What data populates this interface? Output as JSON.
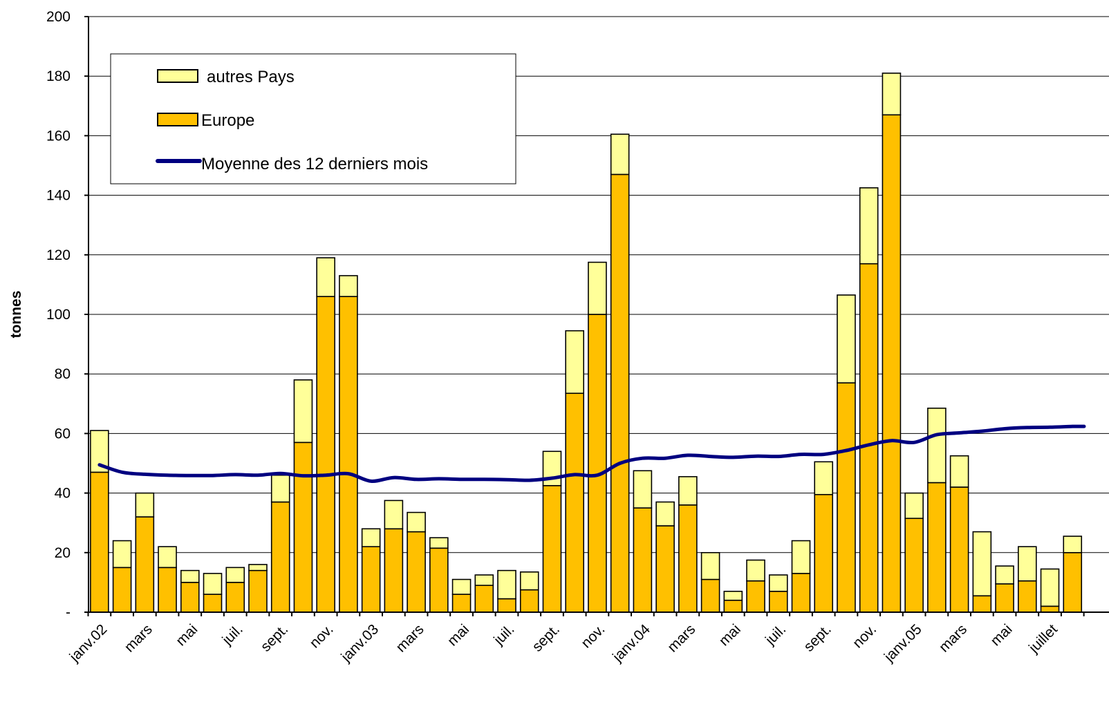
{
  "chart_data": {
    "type": "bar",
    "stacked": true,
    "ylabel": "tonnes",
    "xlabel": "",
    "ylim": [
      0,
      200
    ],
    "y_ticks": [
      {
        "value": 0,
        "label": "-"
      },
      {
        "value": 20,
        "label": "20"
      },
      {
        "value": 40,
        "label": "40"
      },
      {
        "value": 60,
        "label": "60"
      },
      {
        "value": 80,
        "label": "80"
      },
      {
        "value": 100,
        "label": "100"
      },
      {
        "value": 120,
        "label": "120"
      },
      {
        "value": 140,
        "label": "140"
      },
      {
        "value": 160,
        "label": "160"
      },
      {
        "value": 180,
        "label": "180"
      },
      {
        "value": 200,
        "label": "200"
      }
    ],
    "grid": true,
    "legend_position": "top-left",
    "x_tick_labels": [
      {
        "index": 0,
        "label": "janv.02"
      },
      {
        "index": 2,
        "label": "mars"
      },
      {
        "index": 4,
        "label": "mai"
      },
      {
        "index": 6,
        "label": "juil."
      },
      {
        "index": 8,
        "label": "sept."
      },
      {
        "index": 10,
        "label": "nov."
      },
      {
        "index": 12,
        "label": "janv.03"
      },
      {
        "index": 14,
        "label": "mars"
      },
      {
        "index": 16,
        "label": "mai"
      },
      {
        "index": 18,
        "label": "juil."
      },
      {
        "index": 20,
        "label": "sept."
      },
      {
        "index": 22,
        "label": "nov."
      },
      {
        "index": 24,
        "label": "janv.04"
      },
      {
        "index": 26,
        "label": "mars"
      },
      {
        "index": 28,
        "label": "mai"
      },
      {
        "index": 30,
        "label": "juil."
      },
      {
        "index": 32,
        "label": "sept."
      },
      {
        "index": 34,
        "label": "nov."
      },
      {
        "index": 36,
        "label": "janv.05"
      },
      {
        "index": 38,
        "label": "mars"
      },
      {
        "index": 40,
        "label": "mai"
      },
      {
        "index": 42,
        "label": "juillet"
      }
    ],
    "series": [
      {
        "name": "Europe",
        "kind": "bar",
        "color": "#FFC000",
        "values": [
          47,
          15,
          32,
          15,
          10,
          6,
          10,
          14,
          37,
          57,
          106,
          106,
          22,
          28,
          27,
          21.5,
          6,
          9,
          4.5,
          7.5,
          42.5,
          73.5,
          100,
          147,
          35,
          29,
          36,
          11,
          4,
          10.5,
          7,
          13,
          39.5,
          77,
          117,
          167,
          31.5,
          43.5,
          42,
          5.5,
          9.5,
          10.5,
          2,
          20
        ]
      },
      {
        "name": "autres Pays",
        "kind": "bar",
        "color": "#FFFF99",
        "values": [
          14,
          9,
          8,
          7,
          4,
          7,
          5,
          2,
          9,
          21,
          13,
          7,
          6,
          9.5,
          6.5,
          3.5,
          5,
          3.5,
          9.5,
          6,
          11.5,
          21,
          17.5,
          13.5,
          12.5,
          8,
          9.5,
          9,
          3,
          7,
          5.5,
          11,
          11,
          29.5,
          25.5,
          14,
          8.5,
          25,
          10.5,
          21.5,
          6,
          11.5,
          12.5,
          5.5
        ]
      },
      {
        "name": "Moyenne des 12 derniers mois",
        "kind": "line",
        "color": "#000080",
        "values": [
          49.5,
          47,
          46.3,
          46,
          45.9,
          45.9,
          46.2,
          46,
          46.6,
          45.8,
          46,
          46.5,
          44,
          45.2,
          44.6,
          44.8,
          44.6,
          44.6,
          44.5,
          44.3,
          45,
          46.2,
          46,
          50,
          51.7,
          51.7,
          52.7,
          52.3,
          52,
          52.4,
          52.3,
          53,
          53,
          54.3,
          56.2,
          57.6,
          57,
          59.6,
          60.2,
          60.8,
          61.6,
          62,
          62.1,
          62.4
        ]
      }
    ]
  }
}
